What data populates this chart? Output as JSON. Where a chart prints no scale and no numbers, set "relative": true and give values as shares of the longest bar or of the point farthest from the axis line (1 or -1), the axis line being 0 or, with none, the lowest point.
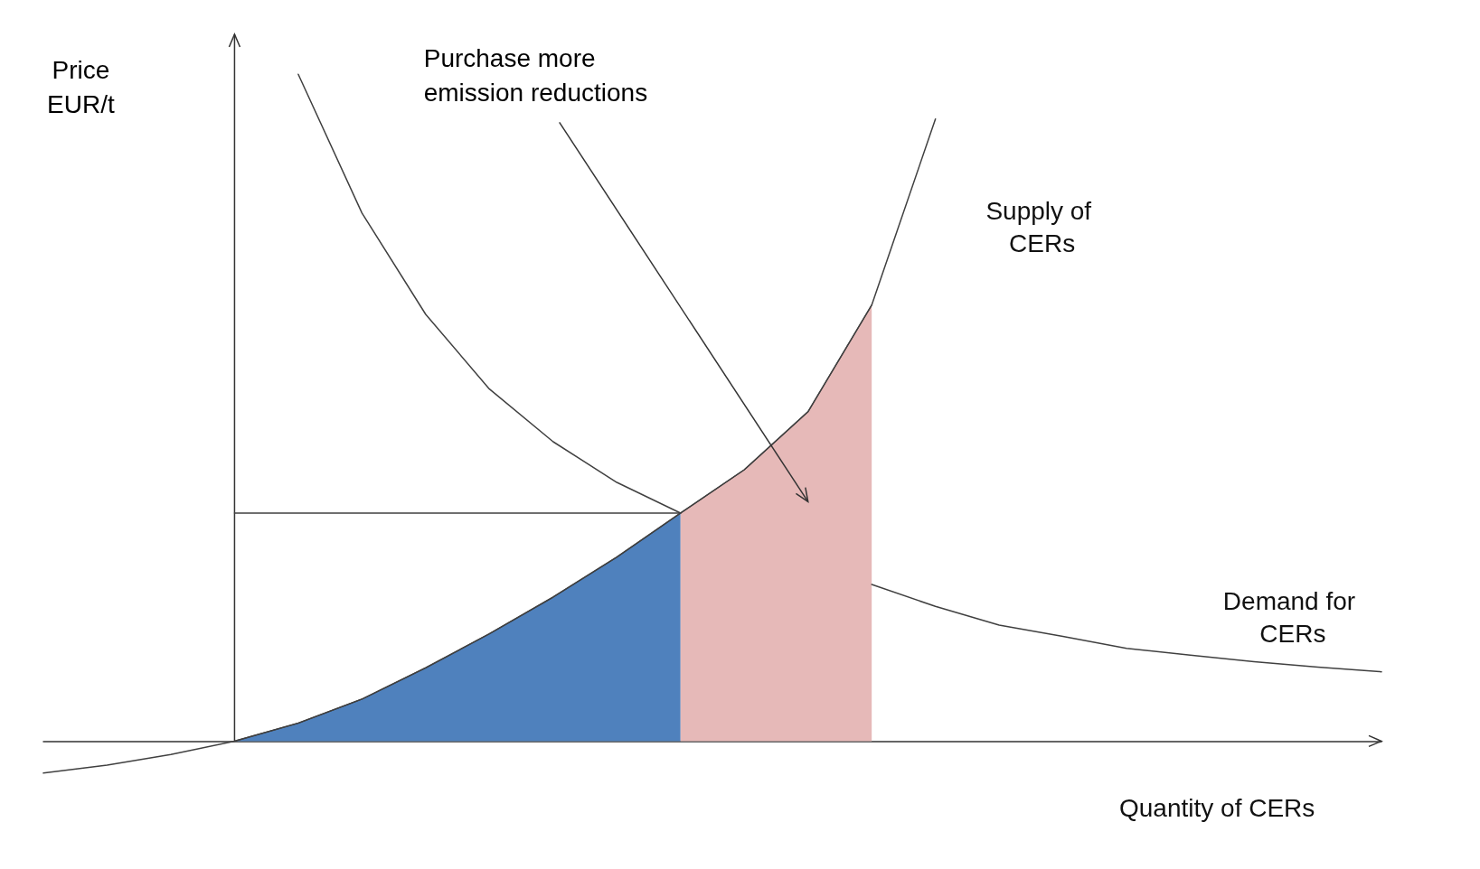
{
  "chart_data": {
    "type": "line",
    "relative": true,
    "xlabel": "Quantity of CERs",
    "ylabel": "Price EUR/t",
    "grid": false,
    "legend": false,
    "marker": "none",
    "line_style": "solid",
    "annotations": [
      "Purchase more emission reductions"
    ],
    "categories": [
      null,
      null,
      null,
      null,
      null,
      null,
      null,
      null,
      null,
      null,
      null,
      null,
      null,
      null,
      null,
      null,
      null,
      null,
      null,
      null,
      null,
      null
    ],
    "series": [
      {
        "name": "Supply of CERs",
        "color": "#404040",
        "values": [
          -0.048,
          -0.036,
          -0.02,
          0,
          0.027,
          0.063,
          0.11,
          0.161,
          0.216,
          0.276,
          0.342,
          0.407,
          0.494,
          0.654,
          0.933,
          null,
          null,
          null,
          null,
          null,
          null,
          null
        ]
      },
      {
        "name": "Demand for CERs",
        "color": "#404040",
        "values": [
          null,
          null,
          null,
          null,
          1.0,
          0.792,
          0.64,
          0.528,
          0.449,
          0.388,
          0.342,
          null,
          null,
          0.235,
          0.202,
          0.174,
          0.157,
          0.139,
          0.129,
          0.119,
          0.111,
          0.104
        ]
      },
      {
        "type": "area",
        "color": "#4f81bd",
        "values": [
          null,
          null,
          null,
          0,
          0.027,
          0.063,
          0.11,
          0.161,
          0.216,
          0.276,
          0.342,
          null,
          null,
          null,
          null,
          null,
          null,
          null,
          null,
          null,
          null,
          null
        ]
      },
      {
        "type": "area",
        "color": "#e6b9b8",
        "values": [
          null,
          null,
          null,
          null,
          null,
          null,
          null,
          null,
          null,
          null,
          0.342,
          0.407,
          0.494,
          0.654,
          null,
          null,
          null,
          null,
          null,
          null,
          null,
          null
        ]
      },
      {
        "color": "#404040",
        "values": [
          null,
          null,
          null,
          0.342,
          0.342,
          0.342,
          0.342,
          0.342,
          0.342,
          0.342,
          0.342,
          null,
          null,
          null,
          null,
          null,
          null,
          null,
          null,
          null,
          null,
          null
        ]
      }
    ]
  }
}
